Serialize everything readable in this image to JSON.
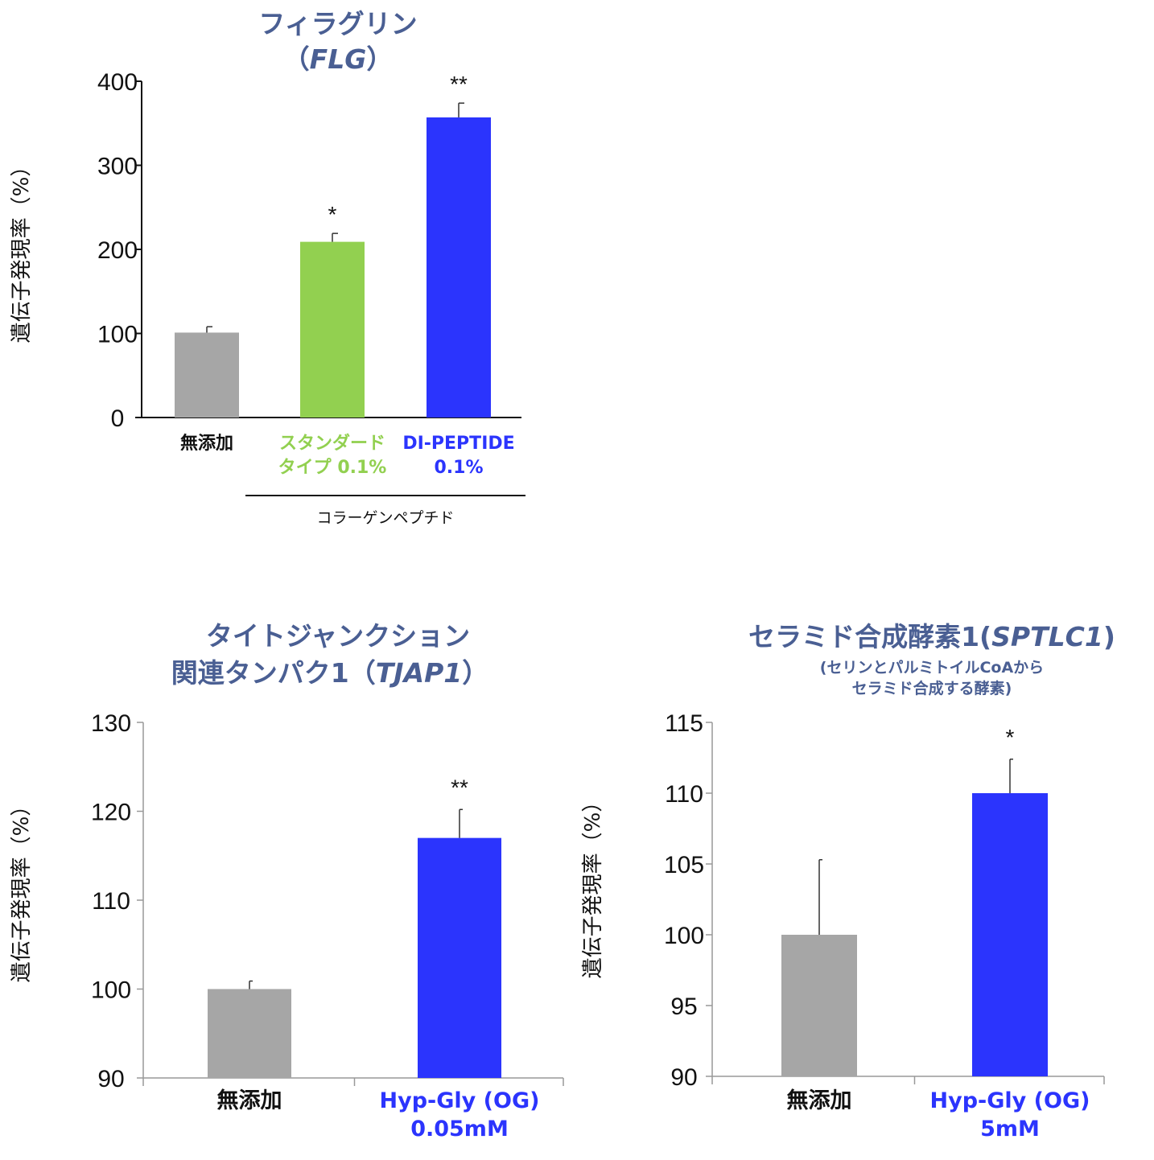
{
  "colors": {
    "title": "#4a5f93",
    "gray": "#a6a6a6",
    "green": "#92d050",
    "blue": "#2b34fd"
  },
  "chart_data": [
    {
      "type": "bar",
      "title": "フィラグリン",
      "title2_open": "（",
      "title2_gene": "FLG",
      "title2_close": "）",
      "ylabel": "遺伝子発現率（%）",
      "ylim": [
        0,
        400
      ],
      "yticks": [
        "0",
        "100",
        "200",
        "300",
        "400"
      ],
      "categories": [
        {
          "lines": [
            "無添加"
          ],
          "color": "#111111"
        },
        {
          "lines": [
            "スタンダード",
            "タイプ 0.1%"
          ],
          "color": "#92d050"
        },
        {
          "lines": [
            "DI-PEPTIDE",
            "0.1%"
          ],
          "color": "#2b34fd"
        }
      ],
      "values": [
        101,
        209,
        357
      ],
      "errors": [
        7,
        10,
        17
      ],
      "bar_colors": [
        "#a6a6a6",
        "#92d050",
        "#2b34fd"
      ],
      "significance": [
        "",
        "*",
        "**"
      ],
      "group_label": "コラーゲンペプチド"
    },
    {
      "type": "bar",
      "title": "タイトジャンクション",
      "title2_open": "関連タンパク1（",
      "title2_gene": "TJAP1",
      "title2_close": "）",
      "ylabel": "遺伝子発現率（%）",
      "ylim": [
        90,
        130
      ],
      "yticks": [
        "90",
        "100",
        "110",
        "120",
        "130"
      ],
      "categories": [
        {
          "lines": [
            "無添加"
          ],
          "color": "#111111"
        },
        {
          "lines": [
            "Hyp-Gly (OG)",
            "0.05mM"
          ],
          "color": "#2b34fd"
        }
      ],
      "values": [
        100,
        117
      ],
      "errors": [
        0.9,
        3.2
      ],
      "bar_colors": [
        "#a6a6a6",
        "#2b34fd"
      ],
      "significance": [
        "",
        "**"
      ]
    },
    {
      "type": "bar",
      "title_open": "セラミド合成酵素1(",
      "title_gene": "SPTLC1",
      "title_close": ")",
      "subtitle": [
        "(セリンとパルミトイルCoAから",
        "セラミド合成する酵素)"
      ],
      "ylabel": "遺伝子発現率（%）",
      "ylim": [
        90,
        115
      ],
      "yticks": [
        "90",
        "95",
        "100",
        "105",
        "110",
        "115"
      ],
      "categories": [
        {
          "lines": [
            "無添加"
          ],
          "color": "#111111"
        },
        {
          "lines": [
            "Hyp-Gly (OG)",
            "5mM"
          ],
          "color": "#2b34fd"
        }
      ],
      "values": [
        100,
        110
      ],
      "errors": [
        5.3,
        2.4
      ],
      "bar_colors": [
        "#a6a6a6",
        "#2b34fd"
      ],
      "significance": [
        "",
        "*"
      ]
    }
  ]
}
